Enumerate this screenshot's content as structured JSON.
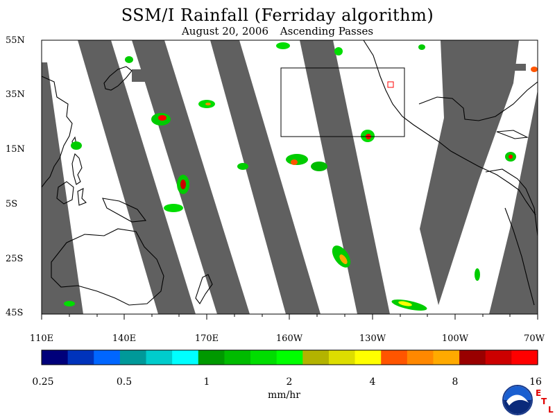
{
  "title": "SSM/I Rainfall (Ferriday algorithm)",
  "subtitle": {
    "date": "August 20, 2006",
    "passes": "Ascending Passes"
  },
  "lat_labels": [
    "55N",
    "35N",
    "15N",
    "5S",
    "25S",
    "45S"
  ],
  "lon_labels": [
    "110E",
    "140E",
    "170E",
    "160W",
    "130W",
    "100W",
    "70W"
  ],
  "colorbar": {
    "labels": [
      "0.25",
      "0.5",
      "1",
      "2",
      "4",
      "8",
      "16"
    ],
    "units": "mm/hr",
    "colors": [
      "#00007a",
      "#0033bb",
      "#0066ff",
      "#009999",
      "#00cccc",
      "#00ffff",
      "#009900",
      "#00bb00",
      "#00dd00",
      "#00ff00",
      "#b3b300",
      "#dddd00",
      "#ffff00",
      "#ff5500",
      "#ff8800",
      "#ffaa00",
      "#990000",
      "#cc0000",
      "#ff0000"
    ]
  },
  "logo": {
    "org": "NOAA",
    "lab_letters": [
      "E",
      "T",
      "L"
    ]
  }
}
